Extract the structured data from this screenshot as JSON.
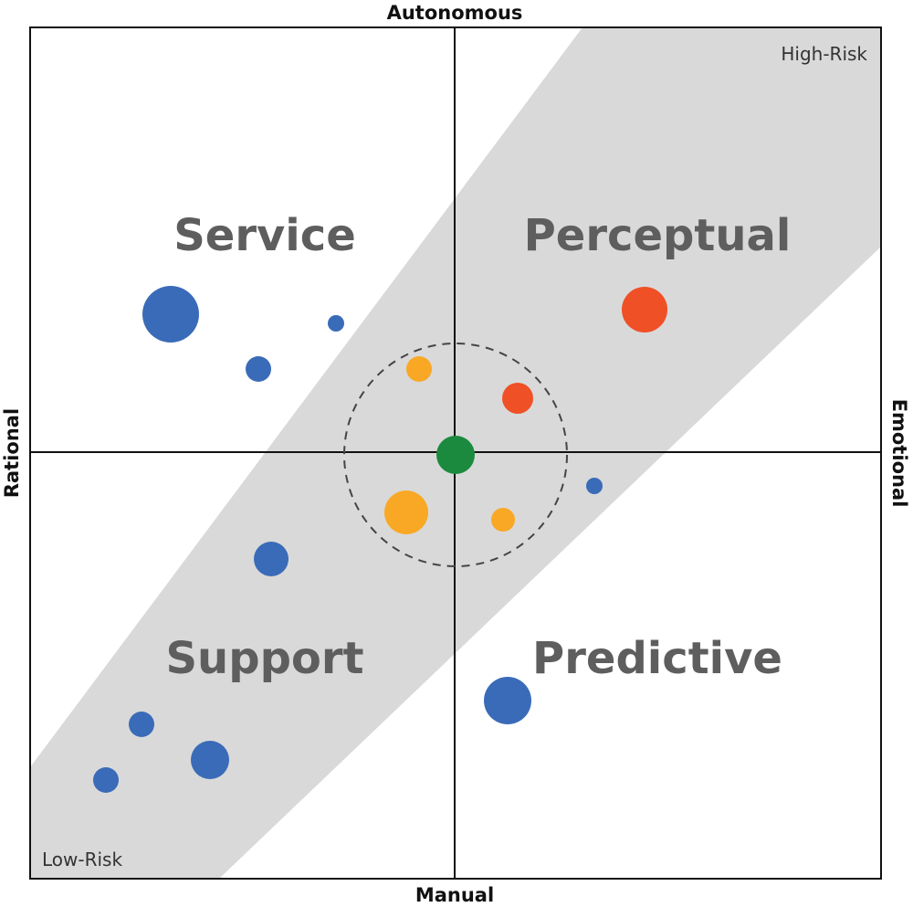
{
  "axes": {
    "top": "Autonomous",
    "bottom": "Manual",
    "left": "Rational",
    "right": "Emotional"
  },
  "quadrants": [
    "Service",
    "Perceptual",
    "Support",
    "Predictive"
  ],
  "corners": {
    "top_right": "High-Risk",
    "bottom_left": "Low-Risk"
  }
}
